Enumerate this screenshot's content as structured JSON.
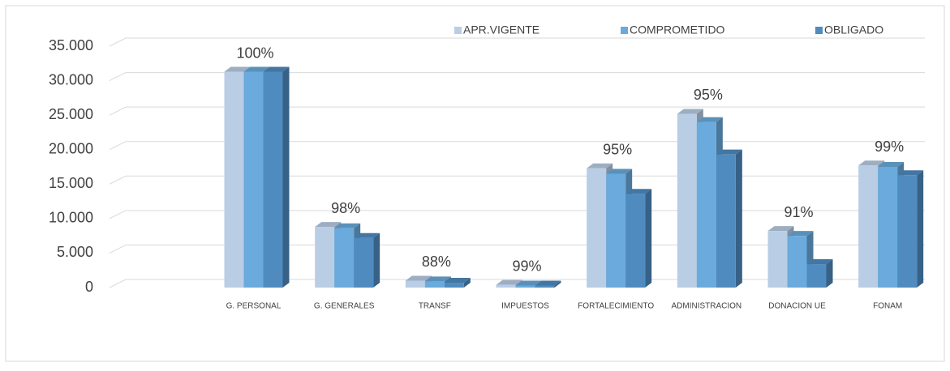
{
  "chart_data": {
    "type": "bar3d",
    "categories": [
      null,
      "G. PERSONAL",
      "G. GENERALES",
      "TRANSF",
      "IMPUESTOS",
      "FORTALECIMIENTO",
      "ADMINISTRACION",
      "DONACION UE",
      "FONAM"
    ],
    "series": [
      {
        "name": "APR.VIGENTE",
        "color": "#b9cde5",
        "values": [
          null,
          31300,
          8800,
          1000,
          400,
          17300,
          25200,
          8200,
          17700
        ]
      },
      {
        "name": "COMPROMETIDO",
        "color": "#6aaadc",
        "values": [
          null,
          31300,
          8600,
          900,
          300,
          16500,
          24000,
          7500,
          17500
        ]
      },
      {
        "name": "OBLIGADO",
        "color": "#4f8bbf",
        "values": [
          null,
          31300,
          7200,
          700,
          300,
          13600,
          19300,
          3400,
          16300
        ]
      }
    ],
    "percent_labels": [
      null,
      "100%",
      "98%",
      "88%",
      "99%",
      "95%",
      "95%",
      "91%",
      "99%"
    ],
    "ylim": [
      0,
      35000
    ],
    "yticks": [
      0,
      {
        "value": 5000,
        "label": "5.000"
      },
      {
        "value": 10000,
        "label": "10.000"
      },
      {
        "value": 15000,
        "label": "15.000"
      },
      {
        "value": 20000,
        "label": "20.000"
      },
      {
        "value": 25000,
        "label": "25.000"
      },
      {
        "value": 30000,
        "label": "30.000"
      },
      {
        "value": 35000,
        "label": "35.000"
      }
    ],
    "grid": true,
    "legend": "top"
  }
}
